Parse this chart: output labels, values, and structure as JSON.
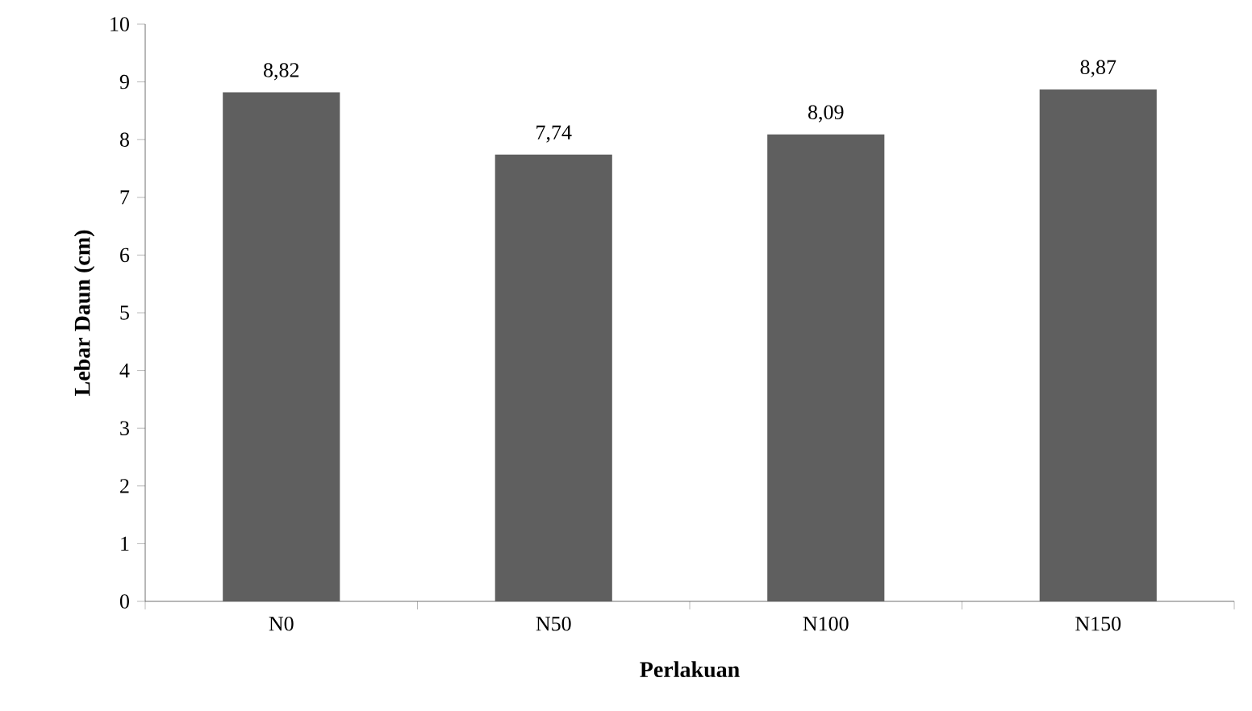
{
  "chart_data": {
    "type": "bar",
    "xlabel": "Perlakuan",
    "ylabel": "Lebar Daun (cm)",
    "categories": [
      "N0",
      "N50",
      "N100",
      "N150"
    ],
    "values": [
      8.82,
      7.74,
      8.09,
      8.87
    ],
    "value_labels": [
      "8,82",
      "7,74",
      "8,09",
      "8,87"
    ],
    "color": "#5f5f5f",
    "ylim": [
      0,
      10
    ],
    "yticks": [
      0,
      1,
      2,
      3,
      4,
      5,
      6,
      7,
      8,
      9,
      10
    ]
  }
}
